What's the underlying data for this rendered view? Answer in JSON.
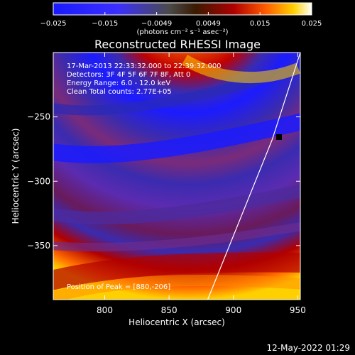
{
  "chart_data": {
    "type": "heatmap",
    "title": "Reconstructed RHESSI Image",
    "colorbar": {
      "ticks": [
        "−0.025",
        "−0.015",
        "−0.0049",
        "0.0049",
        "0.015",
        "0.025"
      ],
      "min": -0.025,
      "max": 0.025,
      "unit_label": "(photons cm⁻² s⁻¹ asec⁻²)"
    },
    "xlabel": "Heliocentric X (arcsec)",
    "ylabel": "Heliocentric Y (arcsec)",
    "xlim": [
      760,
      952
    ],
    "ylim": [
      -392,
      -200
    ],
    "x_ticks": [
      {
        "value": 800,
        "label": "800"
      },
      {
        "value": 850,
        "label": "850"
      },
      {
        "value": 900,
        "label": "900"
      },
      {
        "value": 950,
        "label": "950"
      }
    ],
    "y_ticks": [
      {
        "value": -250,
        "label": "−250"
      },
      {
        "value": -300,
        "label": "−300"
      },
      {
        "value": -350,
        "label": "−350"
      }
    ],
    "annotations": [
      "17-Mar-2013 22:33:32.000 to 22:39:32.000",
      "Detectors: 3F 4F 5F 6F 7F 8F, Att 0",
      "Energy Range: 6.0 - 12.0 keV",
      "Clean     Total counts: 2.77E+05"
    ],
    "peak_label": "Position of Peak = [880,-206]",
    "limb_line": [
      [
        880,
        -392
      ],
      [
        905,
        -330
      ],
      [
        930,
        -268
      ],
      [
        952,
        -200
      ]
    ]
  },
  "footer": {
    "timestamp": "12-May-2022 01:29"
  }
}
